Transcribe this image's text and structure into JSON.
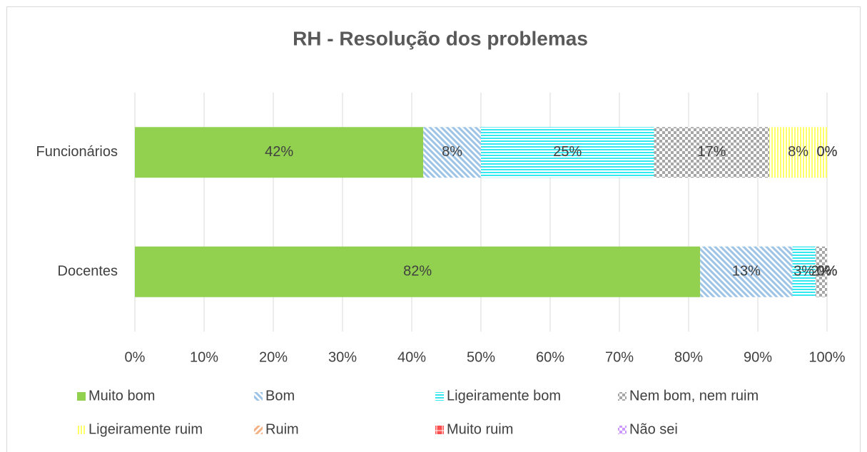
{
  "chart_data": {
    "type": "stacked-bar-horizontal",
    "title": "RH - Resolução dos problemas",
    "categories": [
      "Funcionários",
      "Docentes"
    ],
    "series": [
      {
        "name": "Muito bom",
        "color": "#92d050",
        "pattern": "solid",
        "values": [
          41.67,
          81.67
        ],
        "value_labels": [
          "42%",
          "82%"
        ]
      },
      {
        "name": "Bom",
        "color": "#9dc3e6",
        "pattern": "diagonal-down",
        "values": [
          8.33,
          13.33
        ],
        "value_labels": [
          "8%",
          "13%"
        ]
      },
      {
        "name": "Ligeiramente bom",
        "color": "#33e6f0",
        "pattern": "horizontal",
        "values": [
          25,
          3.33
        ],
        "value_labels": [
          "25%",
          "3%"
        ]
      },
      {
        "name": "Nem bom, nem ruim",
        "color": "#a6a6a6",
        "pattern": "checker",
        "values": [
          16.67,
          1.67
        ],
        "value_labels": [
          "17%",
          "2%"
        ]
      },
      {
        "name": "Ligeiramente ruim",
        "color": "#ffff66",
        "pattern": "vertical",
        "values": [
          8.33,
          0
        ],
        "value_labels": [
          "8%",
          "0%"
        ]
      },
      {
        "name": "Ruim",
        "color": "#f4b183",
        "pattern": "diagonal-up",
        "values": [
          0,
          0
        ],
        "value_labels": [
          "0%",
          "0%"
        ]
      },
      {
        "name": "Muito ruim",
        "color": "#ff5050",
        "pattern": "grid",
        "values": [
          0,
          0
        ],
        "value_labels": [
          "0%",
          "0%"
        ]
      },
      {
        "name": "Não sei",
        "color": "#cc99ff",
        "pattern": "checker",
        "values": [
          0,
          0
        ],
        "value_labels": [
          "0%",
          "0%"
        ]
      }
    ],
    "xlim": [
      0,
      100
    ],
    "xticks": [
      {
        "value": 0,
        "label": "0%"
      },
      {
        "value": 10,
        "label": "10%"
      },
      {
        "value": 20,
        "label": "20%"
      },
      {
        "value": 30,
        "label": "30%"
      },
      {
        "value": 40,
        "label": "40%"
      },
      {
        "value": 50,
        "label": "50%"
      },
      {
        "value": 60,
        "label": "60%"
      },
      {
        "value": 70,
        "label": "70%"
      },
      {
        "value": 80,
        "label": "80%"
      },
      {
        "value": 90,
        "label": "90%"
      },
      {
        "value": 100,
        "label": "100%"
      }
    ],
    "grid": true,
    "legend": "bottom"
  }
}
